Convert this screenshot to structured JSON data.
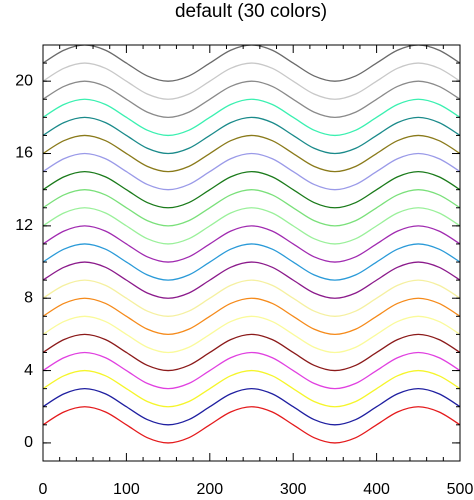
{
  "chart_data": {
    "type": "line",
    "title": "default (30 colors)",
    "x": [
      0,
      25,
      50,
      75,
      100,
      125,
      150,
      175,
      200,
      225,
      250,
      275,
      300,
      325,
      350,
      375,
      400,
      425,
      450,
      475,
      500
    ],
    "xlim": [
      0,
      500
    ],
    "xticks": [
      0,
      100,
      200,
      300,
      400,
      500
    ],
    "ylim": [
      -1,
      22
    ],
    "yticks": [
      0,
      4,
      8,
      12,
      16,
      20
    ],
    "series": [
      {
        "color": "#e41a1c",
        "values": [
          1,
          1.71,
          2,
          1.71,
          1,
          0.29,
          0,
          0.29,
          1,
          1.71,
          2,
          1.71,
          1,
          0.29,
          0,
          0.29,
          1,
          1.71,
          2,
          1.71,
          1
        ]
      },
      {
        "color": "#1f1fa0",
        "values": [
          2,
          2.71,
          3,
          2.71,
          2,
          1.29,
          1,
          1.29,
          2,
          2.71,
          3,
          2.71,
          2,
          1.29,
          1,
          1.29,
          2,
          2.71,
          3,
          2.71,
          2
        ]
      },
      {
        "color": "#f5f52a",
        "values": [
          3,
          3.71,
          4,
          3.71,
          3,
          2.29,
          2,
          2.29,
          3,
          3.71,
          4,
          3.71,
          3,
          2.29,
          2,
          2.29,
          3,
          3.71,
          4,
          3.71,
          3
        ]
      },
      {
        "color": "#e040e0",
        "values": [
          4,
          4.71,
          5,
          4.71,
          4,
          3.29,
          3,
          3.29,
          4,
          4.71,
          5,
          4.71,
          4,
          3.29,
          3,
          3.29,
          4,
          4.71,
          5,
          4.71,
          4
        ]
      },
      {
        "color": "#8b1a1a",
        "values": [
          5,
          5.71,
          6,
          5.71,
          5,
          4.29,
          4,
          4.29,
          5,
          5.71,
          6,
          5.71,
          5,
          4.29,
          4,
          4.29,
          5,
          5.71,
          6,
          5.71,
          5
        ]
      },
      {
        "color": "#fafa9a",
        "values": [
          6,
          6.71,
          7,
          6.71,
          6,
          5.29,
          5,
          5.29,
          6,
          6.71,
          7,
          6.71,
          6,
          5.29,
          5,
          5.29,
          6,
          6.71,
          7,
          6.71,
          6
        ]
      },
      {
        "color": "#f58a1a",
        "values": [
          7,
          7.71,
          8,
          7.71,
          7,
          6.29,
          6,
          6.29,
          7,
          7.71,
          8,
          7.71,
          7,
          6.29,
          6,
          6.29,
          7,
          7.71,
          8,
          7.71,
          7
        ]
      },
      {
        "color": "#f5f0a0",
        "values": [
          8,
          8.71,
          9,
          8.71,
          8,
          7.29,
          7,
          7.29,
          8,
          8.71,
          9,
          8.71,
          8,
          7.29,
          7,
          7.29,
          8,
          8.71,
          9,
          8.71,
          8
        ]
      },
      {
        "color": "#8b1a8b",
        "values": [
          9,
          9.71,
          10,
          9.71,
          9,
          8.29,
          8,
          8.29,
          9,
          9.71,
          10,
          9.71,
          9,
          8.29,
          8,
          8.29,
          9,
          9.71,
          10,
          9.71,
          9
        ]
      },
      {
        "color": "#2a9ad8",
        "values": [
          10,
          10.71,
          11,
          10.71,
          10,
          9.29,
          9,
          9.29,
          10,
          10.71,
          11,
          10.71,
          10,
          9.29,
          9,
          9.29,
          10,
          10.71,
          11,
          10.71,
          10
        ]
      },
      {
        "color": "#a02ab0",
        "values": [
          11,
          11.71,
          12,
          11.71,
          11,
          10.29,
          10,
          10.29,
          11,
          11.71,
          12,
          11.71,
          11,
          10.29,
          10,
          10.29,
          11,
          11.71,
          12,
          11.71,
          11
        ]
      },
      {
        "color": "#9af09a",
        "values": [
          12,
          12.71,
          13,
          12.71,
          12,
          11.29,
          11,
          11.29,
          12,
          12.71,
          13,
          12.71,
          12,
          11.29,
          11,
          11.29,
          12,
          12.71,
          13,
          12.71,
          12
        ]
      },
      {
        "color": "#7ae07a",
        "values": [
          13,
          13.71,
          14,
          13.71,
          13,
          12.29,
          12,
          12.29,
          13,
          13.71,
          14,
          13.71,
          13,
          12.29,
          12,
          12.29,
          13,
          13.71,
          14,
          13.71,
          13
        ]
      },
      {
        "color": "#1a7a1a",
        "values": [
          14,
          14.71,
          15,
          14.71,
          14,
          13.29,
          13,
          13.29,
          14,
          14.71,
          15,
          14.71,
          14,
          13.29,
          13,
          13.29,
          14,
          14.71,
          15,
          14.71,
          14
        ]
      },
      {
        "color": "#9a9ae8",
        "values": [
          15,
          15.71,
          16,
          15.71,
          15,
          14.29,
          14,
          14.29,
          15,
          15.71,
          16,
          15.71,
          15,
          14.29,
          14,
          14.29,
          15,
          15.71,
          16,
          15.71,
          15
        ]
      },
      {
        "color": "#8a7a1a",
        "values": [
          16,
          16.71,
          17,
          16.71,
          16,
          15.29,
          15,
          15.29,
          16,
          16.71,
          17,
          16.71,
          16,
          15.29,
          15,
          15.29,
          16,
          16.71,
          17,
          16.71,
          16
        ]
      },
      {
        "color": "#1a8a8a",
        "values": [
          17,
          17.71,
          18,
          17.71,
          17,
          16.29,
          16,
          16.29,
          17,
          17.71,
          18,
          17.71,
          17,
          16.29,
          16,
          16.29,
          17,
          17.71,
          18,
          17.71,
          17
        ]
      },
      {
        "color": "#3af0b0",
        "values": [
          18,
          18.71,
          19,
          18.71,
          18,
          17.29,
          17,
          17.29,
          18,
          18.71,
          19,
          18.71,
          18,
          17.29,
          17,
          17.29,
          18,
          18.71,
          19,
          18.71,
          18
        ]
      },
      {
        "color": "#8a8a8a",
        "values": [
          19,
          19.71,
          20,
          19.71,
          19,
          18.29,
          18,
          18.29,
          19,
          19.71,
          20,
          19.71,
          19,
          18.29,
          18,
          18.29,
          19,
          19.71,
          20,
          19.71,
          19
        ]
      },
      {
        "color": "#c8c8c8",
        "values": [
          20,
          20.71,
          21,
          20.71,
          20,
          19.29,
          19,
          19.29,
          20,
          20.71,
          21,
          20.71,
          20,
          19.29,
          19,
          19.29,
          20,
          20.71,
          21,
          20.71,
          20
        ]
      },
      {
        "color": "#6a6a6a",
        "values": [
          21,
          21.71,
          22,
          21.71,
          21,
          20.29,
          20,
          20.29,
          21,
          21.71,
          22,
          21.71,
          21,
          20.29,
          20,
          20.29,
          21,
          21.71,
          22,
          21.71,
          21
        ]
      }
    ]
  }
}
